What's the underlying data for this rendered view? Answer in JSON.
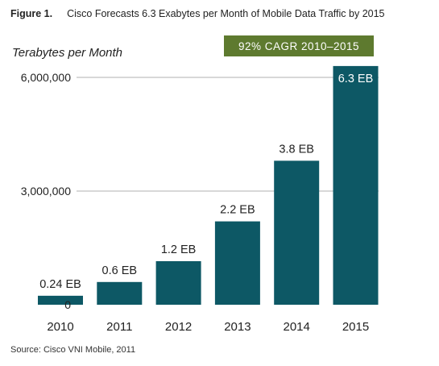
{
  "figure": {
    "number": "Figure 1.",
    "title": "Cisco Forecasts 6.3 Exabytes per Month of Mobile Data Traffic by 2015"
  },
  "badge": {
    "text": "92% CAGR 2010–2015",
    "color": "#5e7a2f"
  },
  "source": "Source: Cisco VNI Mobile, 2011",
  "colors": {
    "bar": "#0d5865",
    "grid": "#b0b0b0"
  },
  "chart_data": {
    "type": "bar",
    "title": "",
    "xlabel": "",
    "ylabel": "Terabytes per Month",
    "categories": [
      "2010",
      "2011",
      "2012",
      "2013",
      "2014",
      "2015"
    ],
    "values": [
      237000,
      600000,
      1150000,
      2200000,
      3800000,
      6300000
    ],
    "data_labels": [
      "0.24 EB",
      "0.6 EB",
      "1.2 EB",
      "2.2 EB",
      "3.8 EB",
      "6.3 EB"
    ],
    "ylim": [
      0,
      6000000
    ],
    "yticks": [
      0,
      3000000,
      6000000
    ],
    "ytick_labels": [
      "0",
      "3,000,000",
      "6,000,000"
    ],
    "grid": true
  }
}
